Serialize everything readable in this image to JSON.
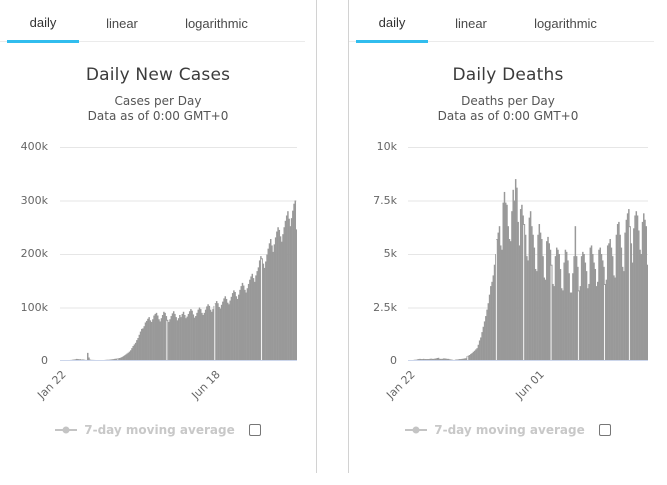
{
  "accent_color": "#31bdee",
  "bar_color": "#999999",
  "grid_color": "#e6e6e6",
  "baseline_color": "#ccd6eb",
  "panels": [
    {
      "tabs": [
        {
          "label": "daily",
          "active": true
        },
        {
          "label": "linear",
          "active": false
        },
        {
          "label": "logarithmic",
          "active": false
        }
      ],
      "title": "Daily New Cases",
      "subtitle_line1": "Cases per Day",
      "subtitle_line2": "Data as of 0:00 GMT+0",
      "legend_label": "7-day moving average",
      "checkbox_checked": false
    },
    {
      "tabs": [
        {
          "label": "daily",
          "active": true
        },
        {
          "label": "linear",
          "active": false
        },
        {
          "label": "logarithmic",
          "active": false
        }
      ],
      "title": "Daily Deaths",
      "subtitle_line1": "Deaths per Day",
      "subtitle_line2": "Data as of 0:00 GMT+0",
      "legend_label": "7-day moving average",
      "checkbox_checked": false
    }
  ],
  "chart_data": [
    {
      "type": "bar",
      "title": "Daily New Cases",
      "subtitle": "Cases per Day — Data as of 0:00 GMT+0",
      "xlabel": "",
      "ylabel": "",
      "unit": "thousands of cases per day",
      "x_ticks": [
        {
          "label": "Jan 22",
          "position_pct": 0
        },
        {
          "label": "Jun 18",
          "position_pct": 66
        }
      ],
      "y_ticks": [
        "0",
        "100k",
        "200k",
        "300k",
        "400k"
      ],
      "ylim_k": [
        0,
        400
      ],
      "grid": "horizontal",
      "legend": [
        "7-day moving average (hidden)"
      ],
      "values_k": [
        0.4,
        0.6,
        0.7,
        0.8,
        0.7,
        1.8,
        1.5,
        1.8,
        2.0,
        2.1,
        2.6,
        2.8,
        3.2,
        3.9,
        3.7,
        3.2,
        3.4,
        2.7,
        3.0,
        2.6,
        2.1,
        2.0,
        15.2,
        6.5,
        2.6,
        2.2,
        2.1,
        2.0,
        1.9,
        0.6,
        0.9,
        1.2,
        1.1,
        1.3,
        1.5,
        1.8,
        2.0,
        2.2,
        2.4,
        2.4,
        2.6,
        2.9,
        3.2,
        3.5,
        4.0,
        4.3,
        4.6,
        5.0,
        5.6,
        6.3,
        7.5,
        9.0,
        10.5,
        12.0,
        13.8,
        15.5,
        17.5,
        20.0,
        24.0,
        28.0,
        31.0,
        34.0,
        39.0,
        43.0,
        49.0,
        55.0,
        60.0,
        61.0,
        65.0,
        72.0,
        75,
        79,
        82,
        76,
        73,
        78,
        85,
        88,
        90,
        85,
        78,
        74,
        80,
        86,
        92,
        90,
        84,
        77,
        73,
        78,
        84,
        89,
        93,
        88,
        82,
        76,
        80,
        86,
        82,
        88,
        92,
        86,
        80,
        83,
        88,
        93,
        97,
        94,
        87,
        81,
        84,
        90,
        96,
        100,
        97,
        90,
        86,
        90,
        96,
        102,
        106,
        103,
        96,
        92,
        97,
        103,
        108,
        112,
        108,
        101,
        98,
        105,
        111,
        117,
        121,
        116,
        109,
        106,
        113,
        120,
        127,
        132,
        129,
        121,
        116,
        124,
        133,
        140,
        146,
        141,
        133,
        128,
        136,
        144,
        152,
        158,
        163,
        155,
        148,
        160,
        168,
        175,
        188,
        196,
        192,
        182,
        174,
        186,
        199,
        210,
        220,
        228,
        216,
        204,
        218,
        231,
        242,
        250,
        245,
        233,
        223,
        237,
        250,
        262,
        272,
        280,
        266,
        252,
        267,
        281,
        294,
        300,
        246
      ]
    },
    {
      "type": "bar",
      "title": "Daily Deaths",
      "subtitle": "Deaths per Day — Data as of 0:00 GMT+0",
      "xlabel": "",
      "ylabel": "",
      "unit": "thousands of deaths per day",
      "x_ticks": [
        {
          "label": "Jan 22",
          "position_pct": 0
        },
        {
          "label": "Jun 01",
          "position_pct": 54
        }
      ],
      "y_ticks": [
        "0",
        "2.5k",
        "5k",
        "7.5k",
        "10k"
      ],
      "ylim_k": [
        0,
        10
      ],
      "grid": "horizontal",
      "legend": [
        "7-day moving average (hidden)"
      ],
      "values_k": [
        0.01,
        0.02,
        0.03,
        0.03,
        0.05,
        0.06,
        0.06,
        0.08,
        0.09,
        0.1,
        0.09,
        0.09,
        0.1,
        0.09,
        0.09,
        0.09,
        0.09,
        0.1,
        0.11,
        0.1,
        0.1,
        0.11,
        0.12,
        0.14,
        0.15,
        0.1,
        0.1,
        0.1,
        0.12,
        0.12,
        0.11,
        0.1,
        0.1,
        0.08,
        0.07,
        0.06,
        0.05,
        0.05,
        0.07,
        0.07,
        0.08,
        0.09,
        0.09,
        0.1,
        0.11,
        0.12,
        0.13,
        0.22,
        0.25,
        0.28,
        0.33,
        0.37,
        0.43,
        0.48,
        0.54,
        0.6,
        0.76,
        0.96,
        1.1,
        1.35,
        1.6,
        1.85,
        2.1,
        2.4,
        2.7,
        3.1,
        3.5,
        3.7,
        4.0,
        4.5,
        5.0,
        5.7,
        6.0,
        6.3,
        5.4,
        5.2,
        7.4,
        7.9,
        7.4,
        7.3,
        6.3,
        5.7,
        5.6,
        7.0,
        8.0,
        7.5,
        8.5,
        8.1,
        6.5,
        5.4,
        7.1,
        7.3,
        6.8,
        6.4,
        5.9,
        4.9,
        4.7,
        6.7,
        7.0,
        6.3,
        5.9,
        5.3,
        4.3,
        4.2,
        5.9,
        6.4,
        6.0,
        5.7,
        4.9,
        3.9,
        3.8,
        5.6,
        5.8,
        5.5,
        5.2,
        4.5,
        3.6,
        3.5,
        4.9,
        5.3,
        5.2,
        5.0,
        4.3,
        3.4,
        3.3,
        4.6,
        5.2,
        5.1,
        4.7,
        4.1,
        3.2,
        3.2,
        4.1,
        4.9,
        6.3,
        4.9,
        4.4,
        3.3,
        3.5,
        4.9,
        5.1,
        5.0,
        4.6,
        4.2,
        3.4,
        3.6,
        5.3,
        5.4,
        5.0,
        4.6,
        4.3,
        3.5,
        3.7,
        5.2,
        5.3,
        5.0,
        4.7,
        4.4,
        3.6,
        3.8,
        5.4,
        5.5,
        5.7,
        5.3,
        4.9,
        4.0,
        3.9,
        5.9,
        6.4,
        6.5,
        5.9,
        5.3,
        4.4,
        4.2,
        6.0,
        6.6,
        6.9,
        7.1,
        6.3,
        5.5,
        4.6,
        6.2,
        6.8,
        7.0,
        6.8,
        6.1,
        5.2,
        5.0,
        6.5,
        6.9,
        6.6,
        6.3,
        4.5
      ]
    }
  ]
}
